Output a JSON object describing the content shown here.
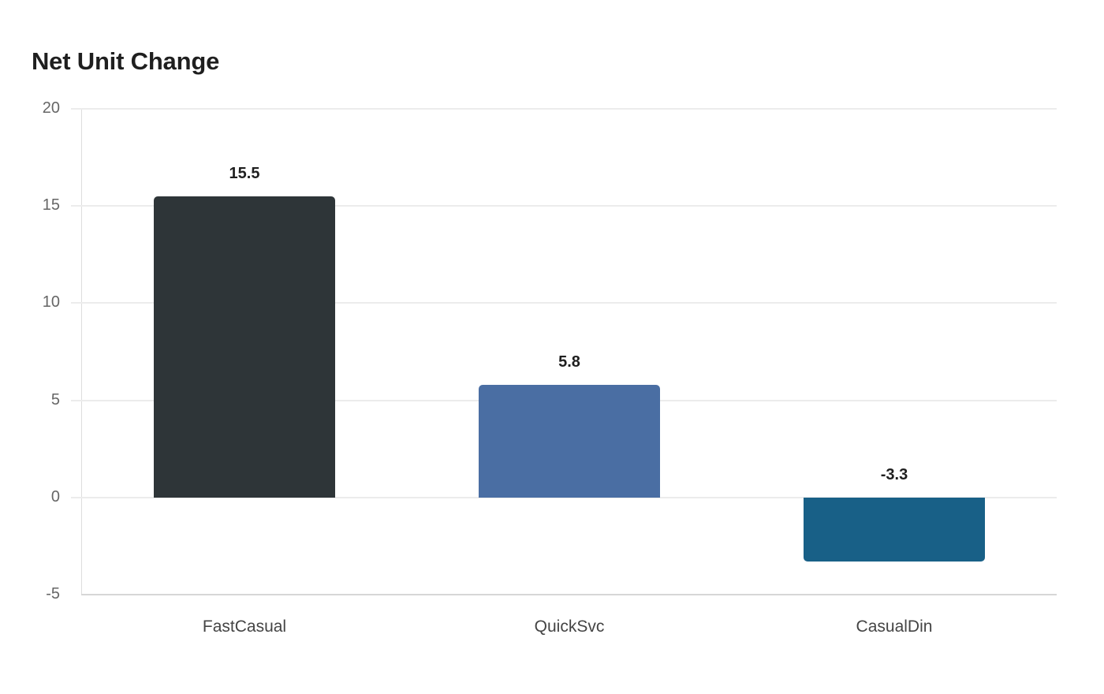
{
  "chart_data": {
    "type": "bar",
    "title": "Net Unit Change",
    "xlabel": "",
    "ylabel": "",
    "categories": [
      "FastCasual",
      "QuickSvc",
      "CasualDin"
    ],
    "values": [
      15.5,
      5.8,
      -3.3
    ],
    "data_labels": [
      "15.5",
      "5.8",
      "-3.3"
    ],
    "colors": [
      "#2e3538",
      "#4a6ea3",
      "#186087"
    ],
    "ylim": [
      -5,
      20
    ],
    "yticks": [
      20,
      15,
      10,
      5,
      0,
      -5
    ],
    "ytick_labels": [
      "20",
      "15",
      "10",
      "5",
      "0",
      "-5"
    ],
    "grid": true,
    "legend": null
  }
}
